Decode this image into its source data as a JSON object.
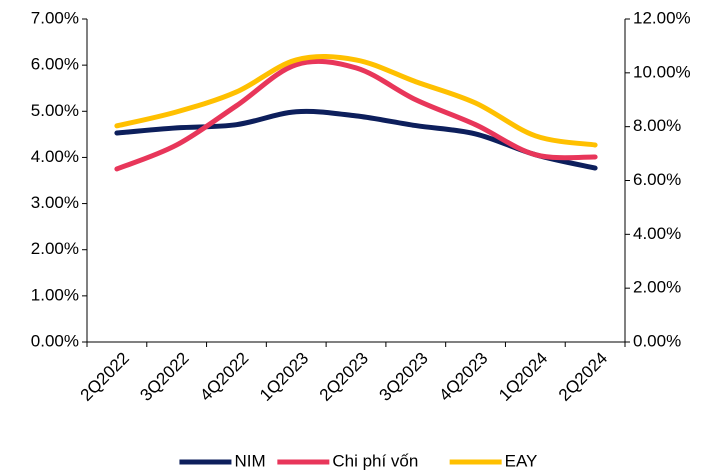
{
  "chart_data": {
    "type": "line",
    "categories": [
      "2Q2022",
      "3Q2022",
      "4Q2022",
      "1Q2023",
      "2Q2023",
      "3Q2023",
      "4Q2023",
      "1Q2024",
      "2Q2024"
    ],
    "series": [
      {
        "name": "NIM",
        "color": "#0d1f5c",
        "values": [
          4.53,
          4.64,
          4.71,
          4.99,
          4.9,
          4.69,
          4.51,
          4.06,
          3.77
        ]
      },
      {
        "name": "Chi phí vốn",
        "color": "#e8365a",
        "values": [
          3.75,
          4.27,
          5.12,
          6.01,
          5.94,
          5.25,
          4.71,
          4.06,
          4.01
        ]
      },
      {
        "name": "EAY",
        "color": "#ffc000",
        "axis": "y2",
        "values": [
          8.03,
          8.55,
          9.29,
          10.48,
          10.48,
          9.67,
          8.88,
          7.66,
          7.32
        ]
      }
    ],
    "ylim": [
      0,
      7
    ],
    "yticks": [
      {
        "value": 0,
        "label": "0.00%"
      },
      {
        "value": 1,
        "label": "1.00%"
      },
      {
        "value": 2,
        "label": "2.00%"
      },
      {
        "value": 3,
        "label": "3.00%"
      },
      {
        "value": 4,
        "label": "4.00%"
      },
      {
        "value": 5,
        "label": "5.00%"
      },
      {
        "value": 6,
        "label": "6.00%"
      },
      {
        "value": 7,
        "label": "7.00%"
      }
    ],
    "y2lim": [
      0,
      12
    ],
    "y2ticks": [
      {
        "value": 0,
        "label": "0.00%"
      },
      {
        "value": 2,
        "label": "2.00%"
      },
      {
        "value": 4,
        "label": "4.00%"
      },
      {
        "value": 6,
        "label": "6.00%"
      },
      {
        "value": 8,
        "label": "8.00%"
      },
      {
        "value": 10,
        "label": "10.00%"
      },
      {
        "value": 12,
        "label": "12.00%"
      }
    ],
    "legend": "bottom"
  }
}
